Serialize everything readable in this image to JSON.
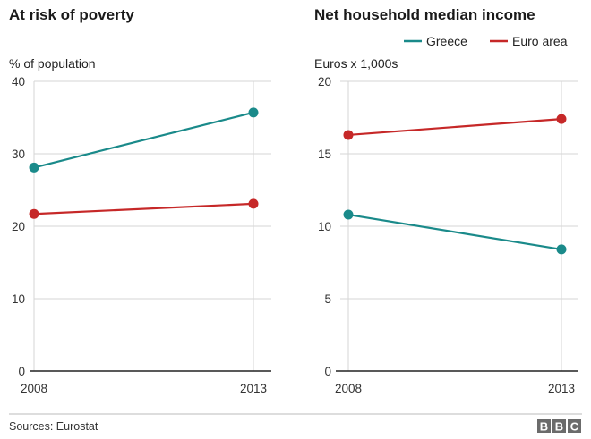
{
  "footer": {
    "source": "Sources: Eurostat",
    "logo_letters": [
      "B",
      "B",
      "C"
    ]
  },
  "legend": {
    "items": [
      {
        "name": "Greece",
        "color": "#1a8a8a"
      },
      {
        "name": "Euro area",
        "color": "#c62828"
      }
    ]
  },
  "chart_data": [
    {
      "type": "line",
      "title": "At risk of poverty",
      "ylabel": "% of population",
      "xlabel": "",
      "x": [
        "2008",
        "2013"
      ],
      "ylim": [
        0,
        40
      ],
      "yticks": [
        0,
        10,
        20,
        30,
        40
      ],
      "grid": true,
      "series": [
        {
          "name": "Greece",
          "values": [
            28.1,
            35.7
          ]
        },
        {
          "name": "Euro area",
          "values": [
            21.7,
            23.1
          ]
        }
      ]
    },
    {
      "type": "line",
      "title": "Net household median income",
      "ylabel": "Euros x 1,000s",
      "xlabel": "",
      "x": [
        "2008",
        "2013"
      ],
      "ylim": [
        0,
        20
      ],
      "yticks": [
        0,
        5,
        10,
        15,
        20
      ],
      "grid": true,
      "legend_position": "top-right",
      "series": [
        {
          "name": "Greece",
          "values": [
            10.8,
            8.4
          ]
        },
        {
          "name": "Euro area",
          "values": [
            16.3,
            17.4
          ]
        }
      ]
    }
  ]
}
